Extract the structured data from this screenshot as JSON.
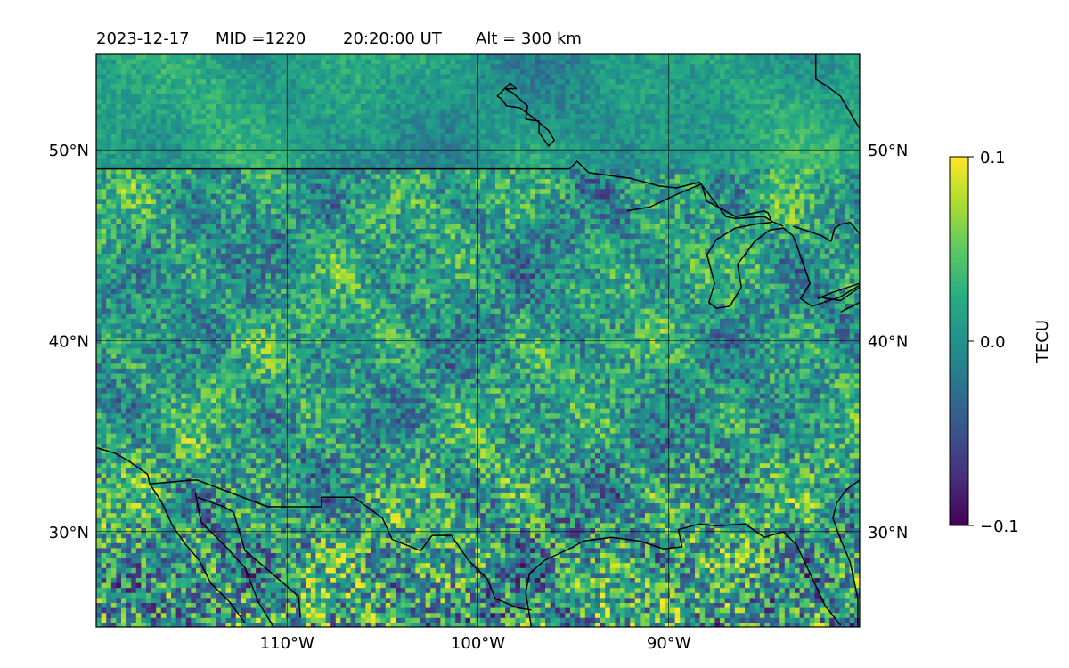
{
  "header": {
    "date": "2023-12-17",
    "mid": "MID =1220",
    "time": "20:20:00  UT",
    "alt": "Alt = 300 km"
  },
  "chart_data": {
    "type": "heatmap",
    "colormap": "viridis",
    "xlim": [
      -120,
      -80
    ],
    "ylim": [
      25,
      55
    ],
    "x_ticks": [
      {
        "value": -110,
        "label": "110°W"
      },
      {
        "value": -100,
        "label": "100°W"
      },
      {
        "value": -90,
        "label": "90°W"
      }
    ],
    "y_ticks": [
      {
        "value": 30,
        "label": "30°N"
      },
      {
        "value": 40,
        "label": "40°N"
      },
      {
        "value": 50,
        "label": "50°N"
      }
    ],
    "grid": true,
    "colorbar": {
      "label": "TECU",
      "min": -0.1,
      "max": 0.1,
      "ticks": [
        {
          "value": 0.1,
          "label": "0.1"
        },
        {
          "value": 0.0,
          "label": "0.0"
        },
        {
          "value": -0.1,
          "label": "−0.1"
        }
      ]
    },
    "coastlines": [
      [
        [
          -120,
          49
        ],
        [
          -115,
          49
        ],
        [
          -110,
          49
        ],
        [
          -105,
          49
        ],
        [
          -100,
          49
        ],
        [
          -95.2,
          49
        ],
        [
          -94.8,
          49.4
        ],
        [
          -94.2,
          48.8
        ],
        [
          -92,
          48.5
        ],
        [
          -90.5,
          48.1
        ],
        [
          -89.6,
          48
        ],
        [
          -88.4,
          48.3
        ],
        [
          -88,
          47.8
        ],
        [
          -87,
          46.5
        ],
        [
          -86.5,
          46.4
        ],
        [
          -85,
          46.5
        ],
        [
          -84.5,
          46.2
        ],
        [
          -84,
          46
        ]
      ],
      [
        [
          -92.2,
          46.8
        ],
        [
          -91,
          47
        ],
        [
          -89.5,
          47.7
        ],
        [
          -88.3,
          48.2
        ],
        [
          -88,
          47.3
        ],
        [
          -87.4,
          47
        ],
        [
          -86.5,
          46.5
        ],
        [
          -85,
          46.8
        ],
        [
          -84.8,
          46.7
        ],
        [
          -84.6,
          46.2
        ],
        [
          -85.5,
          46.1
        ],
        [
          -86.5,
          45.9
        ],
        [
          -87.5,
          45.3
        ],
        [
          -88,
          44.5
        ],
        [
          -87.6,
          43
        ],
        [
          -87.9,
          42
        ],
        [
          -87.5,
          41.7
        ],
        [
          -86.8,
          41.8
        ],
        [
          -86.2,
          42.8
        ],
        [
          -86.4,
          44
        ],
        [
          -85.5,
          45.2
        ],
        [
          -84.7,
          45.8
        ],
        [
          -84,
          45.9
        ],
        [
          -83.5,
          45.5
        ],
        [
          -83.3,
          45
        ],
        [
          -82.6,
          43
        ],
        [
          -83.1,
          42.2
        ],
        [
          -82.5,
          41.8
        ],
        [
          -81,
          42.3
        ],
        [
          -80,
          42.9
        ]
      ],
      [
        [
          -83.5,
          46
        ],
        [
          -82,
          45.5
        ],
        [
          -81.5,
          45.2
        ],
        [
          -81.3,
          45.9
        ],
        [
          -81,
          46.1
        ],
        [
          -80.5,
          46.2
        ],
        [
          -80,
          45.6
        ]
      ],
      [
        [
          -81,
          41.5
        ],
        [
          -80,
          42
        ]
      ],
      [
        [
          -82.2,
          42.2
        ],
        [
          -81.5,
          42.5
        ],
        [
          -80,
          43
        ]
      ],
      [
        [
          -82.2,
          42.3
        ],
        [
          -81,
          42.1
        ],
        [
          -80,
          42.8
        ]
      ],
      [
        [
          -80,
          55
        ],
        [
          -80,
          53.8
        ]
      ],
      [
        [
          -82.3,
          55
        ],
        [
          -82.3,
          53.7
        ],
        [
          -81.8,
          53.4
        ],
        [
          -81,
          52.8
        ],
        [
          -80,
          51.1
        ]
      ],
      [
        [
          -99,
          52.8
        ],
        [
          -98.3,
          53.5
        ],
        [
          -98,
          53.2
        ],
        [
          -98.6,
          53.2
        ],
        [
          -98.2,
          53
        ],
        [
          -97.4,
          52.3
        ],
        [
          -97.5,
          51.6
        ],
        [
          -96.8,
          51.5
        ],
        [
          -96.8,
          50.9
        ],
        [
          -96.3,
          50.2
        ],
        [
          -96,
          50.5
        ],
        [
          -96.3,
          51
        ],
        [
          -97,
          51.6
        ],
        [
          -97.8,
          52.2
        ],
        [
          -98.5,
          52.3
        ],
        [
          -98.8,
          52.7
        ],
        [
          -99,
          52.8
        ]
      ],
      [
        [
          -117.2,
          32.5
        ],
        [
          -115,
          32.7
        ],
        [
          -114.7,
          32.7
        ],
        [
          -111,
          31.3
        ],
        [
          -108.2,
          31.3
        ],
        [
          -108.2,
          31.8
        ],
        [
          -106.5,
          31.8
        ],
        [
          -105,
          30.7
        ],
        [
          -104.5,
          29.6
        ],
        [
          -103,
          29
        ],
        [
          -102.4,
          29.8
        ],
        [
          -101.4,
          29.8
        ],
        [
          -100.5,
          28.5
        ],
        [
          -99.5,
          27.5
        ],
        [
          -99.1,
          26.5
        ],
        [
          -97.9,
          26
        ],
        [
          -97.2,
          25.9
        ]
      ],
      [
        [
          -120,
          34.4
        ],
        [
          -119,
          34.1
        ],
        [
          -118.3,
          33.7
        ],
        [
          -117.3,
          33
        ],
        [
          -117.2,
          32.5
        ],
        [
          -116.6,
          31.6
        ],
        [
          -116,
          30.3
        ],
        [
          -115.3,
          29.3
        ],
        [
          -114.6,
          28.5
        ],
        [
          -114,
          27.3
        ],
        [
          -113,
          26.3
        ],
        [
          -112.2,
          25.2
        ]
      ],
      [
        [
          -114.8,
          32
        ],
        [
          -114.5,
          30.5
        ],
        [
          -113.2,
          29.2
        ],
        [
          -112.2,
          28.1
        ],
        [
          -111.5,
          26.3
        ],
        [
          -110.7,
          25
        ]
      ],
      [
        [
          -114.7,
          31.8
        ],
        [
          -113.3,
          31.3
        ],
        [
          -112.8,
          31
        ],
        [
          -112.2,
          29
        ],
        [
          -110.9,
          27.9
        ],
        [
          -109.4,
          26.6
        ],
        [
          -109.3,
          25.5
        ]
      ],
      [
        [
          -97.2,
          25
        ],
        [
          -97.5,
          26.8
        ],
        [
          -97.3,
          27.8
        ],
        [
          -96.5,
          28.5
        ],
        [
          -95,
          29.2
        ],
        [
          -94.5,
          29.5
        ],
        [
          -93,
          29.7
        ],
        [
          -91.5,
          29.5
        ],
        [
          -90.3,
          29.1
        ],
        [
          -89.3,
          29.2
        ],
        [
          -89.5,
          30.1
        ],
        [
          -88.4,
          30.4
        ],
        [
          -87.5,
          30.3
        ],
        [
          -86,
          30.4
        ],
        [
          -85,
          29.7
        ],
        [
          -84,
          30
        ],
        [
          -83.3,
          29.3
        ],
        [
          -82.6,
          27.8
        ],
        [
          -81.8,
          26.1
        ],
        [
          -81,
          25.1
        ]
      ],
      [
        [
          -80.1,
          25
        ],
        [
          -80.1,
          26.5
        ],
        [
          -80.5,
          28.4
        ],
        [
          -81,
          29.6
        ],
        [
          -81.4,
          30.7
        ],
        [
          -81.2,
          31.5
        ],
        [
          -80.7,
          32.2
        ],
        [
          -80,
          32.7
        ]
      ]
    ]
  }
}
